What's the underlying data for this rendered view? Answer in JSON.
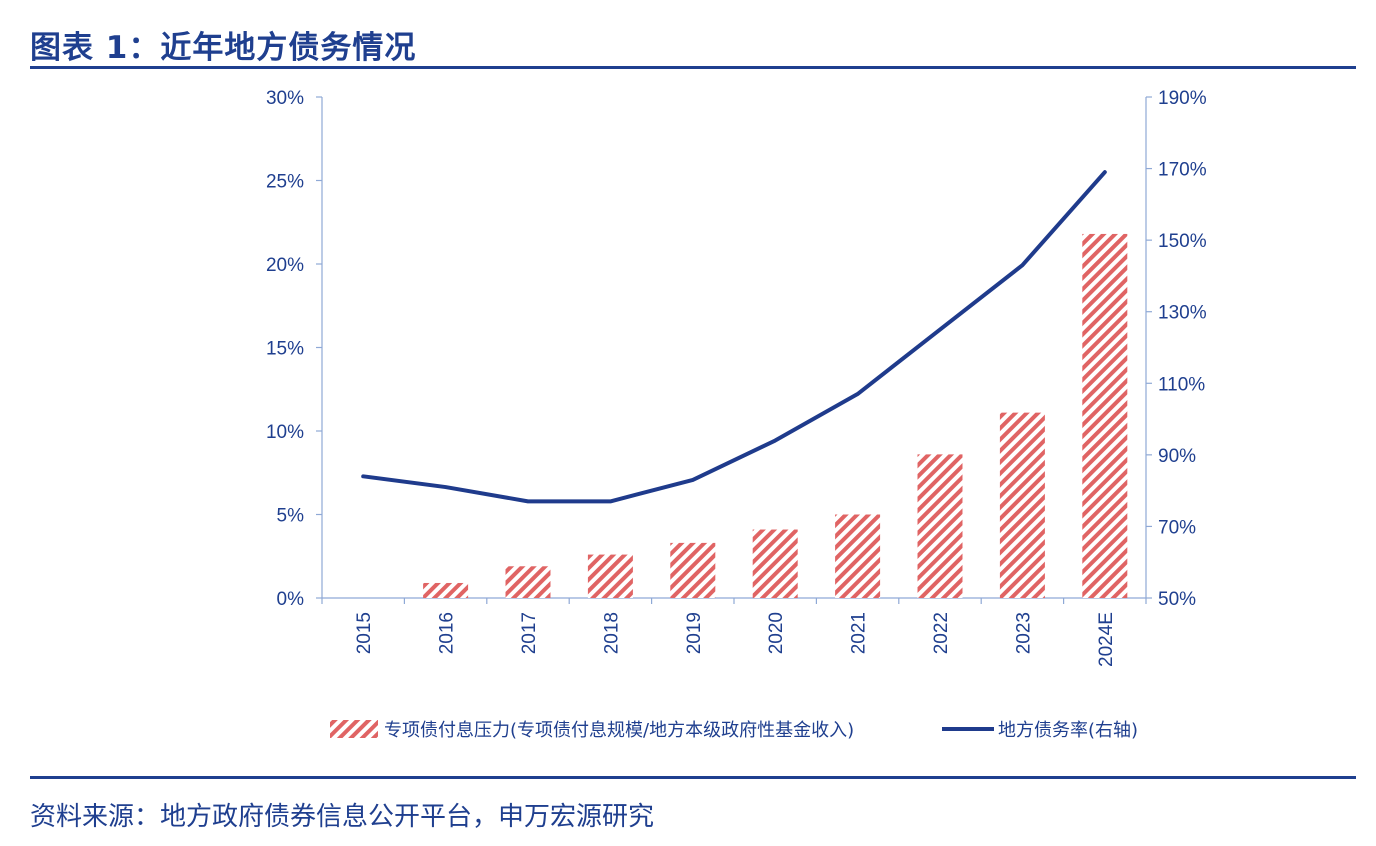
{
  "figure": {
    "title": "图表 1：近年地方债务情况",
    "source": "资料来源：地方政府债券信息公开平台，申万宏源研究"
  },
  "colors": {
    "accent": "#1f3f8f",
    "bar_stripe": "#e06464",
    "line": "#1f3b8c"
  },
  "chart_data": {
    "type": "bar",
    "title": "",
    "categories": [
      "2015",
      "2016",
      "2017",
      "2018",
      "2019",
      "2020",
      "2021",
      "2022",
      "2023",
      "2024E"
    ],
    "left_axis": {
      "min": 0,
      "max": 30,
      "step": 5,
      "tick_labels": [
        "0%",
        "5%",
        "10%",
        "15%",
        "20%",
        "25%",
        "30%"
      ]
    },
    "right_axis": {
      "min": 50,
      "max": 190,
      "step": 20,
      "tick_labels": [
        "50%",
        "70%",
        "90%",
        "110%",
        "130%",
        "150%",
        "170%",
        "190%"
      ]
    },
    "series": [
      {
        "name": "专项债付息压力(专项债付息规模/地方本级政府性基金收入)",
        "type": "bar",
        "axis": "left",
        "values": [
          0,
          0.9,
          1.9,
          2.6,
          3.3,
          4.1,
          5.0,
          8.6,
          11.1,
          21.8
        ]
      },
      {
        "name": "地方债务率(右轴)",
        "type": "line",
        "axis": "right",
        "values": [
          84,
          81,
          77,
          77,
          83,
          94,
          107,
          125,
          143,
          169
        ]
      }
    ],
    "legend_position": "bottom-center",
    "grid": false
  }
}
